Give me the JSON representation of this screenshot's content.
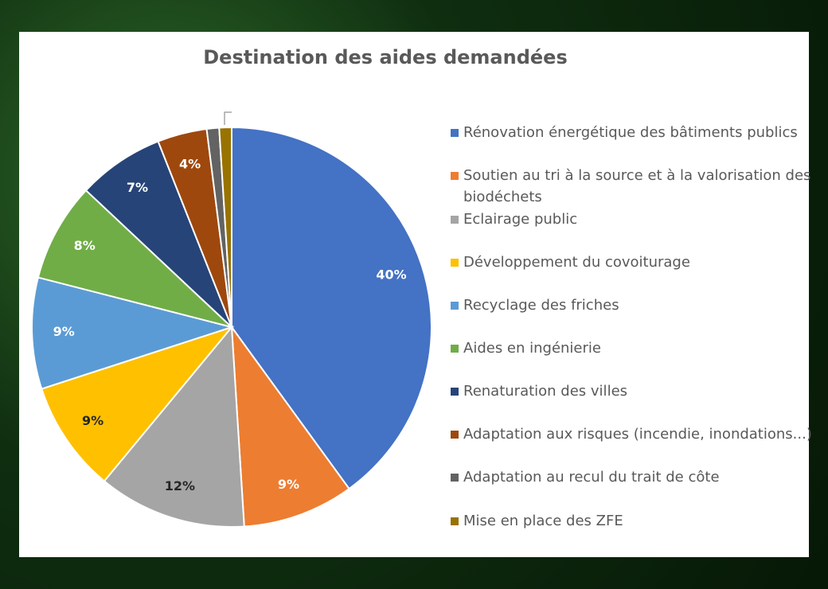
{
  "chart_data": {
    "type": "pie",
    "title": "Destination des aides demandées",
    "categories": [
      "Rénovation énergétique des bâtiments publics",
      "Soutien au tri à la source et à la valorisation des biodéchets",
      "Eclairage public",
      "Développement du covoiturage",
      "Recyclage des friches",
      "Aides en ingénierie",
      "Renaturation des villes",
      "Adaptation aux risques (incendie, inondations...)",
      "Adaptation au recul du trait de côte",
      "Mise en place des ZFE"
    ],
    "values": [
      40,
      9,
      12,
      9,
      9,
      8,
      7,
      4,
      1,
      1
    ],
    "value_labels": [
      "40%",
      "9%",
      "12%",
      "9%",
      "9%",
      "8%",
      "7%",
      "4%",
      null,
      null
    ],
    "colors": [
      "#4472c4",
      "#ed7d31",
      "#a5a5a5",
      "#ffc000",
      "#5b9bd5",
      "#70ad47",
      "#264478",
      "#9e480e",
      "#636363",
      "#997300"
    ],
    "legend": "right"
  }
}
